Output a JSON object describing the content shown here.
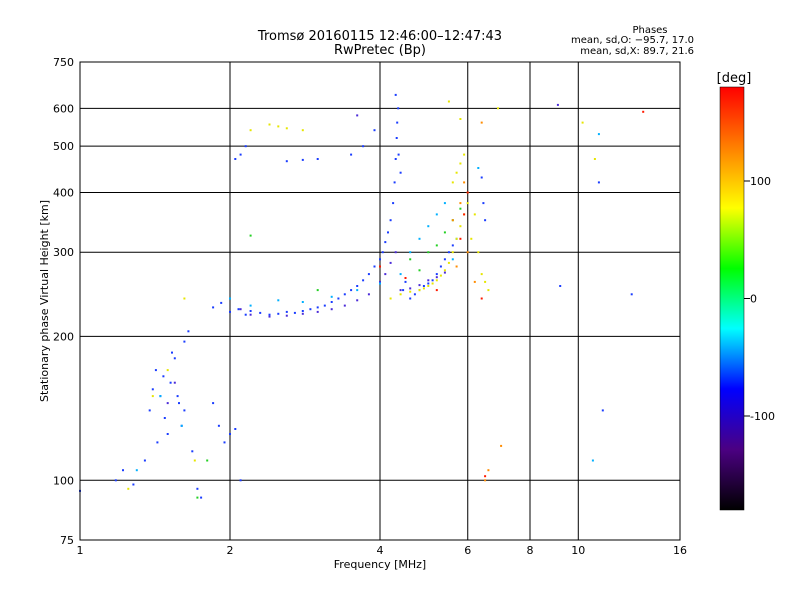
{
  "chart_data": {
    "type": "scatter",
    "title": "Tromsø 20160115 12:46:00–12:47:43",
    "subtitle": "RwPretec (Bp)",
    "xlabel": "Frequency [MHz]",
    "ylabel": "Stationary phase Virtual Height [km]",
    "x_scale": "log",
    "y_scale": "log",
    "xlim": [
      1,
      16
    ],
    "ylim": [
      75,
      750
    ],
    "x_ticks": [
      1,
      2,
      4,
      6,
      8,
      10,
      16
    ],
    "y_ticks": [
      75,
      100,
      200,
      300,
      400,
      500,
      600,
      750
    ],
    "grid": true,
    "stats": {
      "heading": "Phases",
      "o_line": "mean, sd,O: −95.7, 17.0",
      "x_line": "mean, sd,X: 89.7, 21.6"
    },
    "colorbar": {
      "label": "[deg]",
      "range": [
        -180,
        180
      ],
      "ticks": [
        100,
        0,
        -100
      ],
      "colors": [
        "#000000",
        "#4b0082",
        "#0000ff",
        "#00ffff",
        "#00ff00",
        "#ffff00",
        "#ff8000",
        "#ff0000"
      ]
    },
    "series": [
      {
        "phase": -100,
        "color": "#1a3cff",
        "x": [
          1.0,
          1.18,
          1.22,
          1.28,
          1.35,
          1.38,
          1.4,
          1.42,
          1.45,
          1.48,
          1.5,
          1.52,
          1.55,
          1.58,
          1.6,
          1.62,
          1.65,
          1.43,
          1.47,
          1.53,
          1.57,
          1.62,
          1.68,
          1.72,
          1.75,
          1.85,
          1.9,
          1.95,
          2.0,
          2.05,
          2.1,
          1.85,
          1.92,
          2.0,
          2.08,
          2.15,
          2.2,
          2.3,
          2.4,
          2.5,
          2.6,
          2.7,
          2.8,
          2.9,
          3.0,
          3.1,
          3.2,
          3.3,
          3.4,
          3.5,
          3.6,
          3.7,
          3.8,
          3.9,
          4.0,
          4.05,
          4.1,
          4.15,
          4.2,
          4.25,
          4.28,
          4.3,
          4.32,
          4.35,
          4.3,
          4.33,
          4.36,
          4.4,
          4.45,
          4.5,
          4.6,
          4.7,
          4.8,
          4.9,
          5.0,
          5.1,
          5.2,
          5.3,
          5.4,
          5.5,
          5.6,
          2.05,
          2.1,
          2.15,
          2.6,
          2.8,
          3.0,
          3.5,
          3.7,
          3.9,
          6.4,
          6.45,
          6.5,
          9.2,
          11.0,
          12.8,
          11.2
        ],
        "y": [
          95,
          100,
          105,
          98,
          110,
          140,
          155,
          170,
          150,
          135,
          125,
          160,
          180,
          145,
          130,
          195,
          205,
          120,
          165,
          185,
          150,
          140,
          115,
          96,
          92,
          145,
          130,
          120,
          125,
          128,
          100,
          230,
          235,
          225,
          228,
          222,
          226,
          224,
          222,
          223,
          225,
          224,
          226,
          228,
          230,
          232,
          236,
          240,
          245,
          250,
          255,
          262,
          270,
          280,
          290,
          300,
          315,
          330,
          350,
          380,
          420,
          470,
          520,
          600,
          640,
          560,
          480,
          440,
          250,
          260,
          240,
          245,
          250,
          255,
          258,
          262,
          270,
          280,
          290,
          300,
          310,
          470,
          480,
          500,
          465,
          468,
          470,
          480,
          500,
          540,
          430,
          380,
          350,
          255,
          420,
          245,
          140
        ],
        "px": [],
        "py": []
      },
      {
        "phase": -130,
        "color": "#4b2bd8",
        "x": [
          1.5,
          1.55,
          2.1,
          2.2,
          2.4,
          2.6,
          2.8,
          3.0,
          3.2,
          3.4,
          3.6,
          3.8,
          4.0,
          4.1,
          4.2,
          4.3,
          4.4,
          4.6,
          4.8,
          5.0,
          5.2,
          5.4,
          9.1,
          3.6
        ],
        "y": [
          145,
          160,
          228,
          222,
          220,
          221,
          223,
          225,
          228,
          232,
          238,
          245,
          260,
          270,
          285,
          300,
          250,
          252,
          256,
          262,
          266,
          272,
          610,
          580
        ],
        "px": [],
        "py": []
      },
      {
        "phase": -10,
        "color": "#00b0ff",
        "x": [
          1.3,
          1.45,
          1.6,
          2.0,
          2.2,
          2.5,
          2.8,
          3.2,
          3.6,
          4.0,
          4.4,
          4.6,
          4.8,
          5.0,
          5.2,
          5.4,
          5.6,
          5.7,
          6.3,
          11.0,
          10.7
        ],
        "y": [
          105,
          150,
          130,
          240,
          232,
          238,
          236,
          242,
          250,
          258,
          270,
          300,
          320,
          340,
          360,
          380,
          290,
          320,
          450,
          530,
          110
        ],
        "px": [],
        "py": []
      },
      {
        "phase": 20,
        "color": "#22d022",
        "x": [
          1.72,
          1.8,
          2.2,
          3.0,
          4.6,
          5.0,
          5.2,
          5.4,
          5.6,
          5.8,
          4.8
        ],
        "y": [
          92,
          110,
          325,
          250,
          290,
          300,
          310,
          330,
          350,
          370,
          275
        ],
        "px": [],
        "py": []
      },
      {
        "phase": 100,
        "color": "#e6e600",
        "x": [
          1.25,
          1.4,
          1.5,
          1.62,
          1.7,
          2.2,
          2.4,
          2.5,
          2.6,
          2.8,
          4.2,
          4.4,
          4.6,
          4.8,
          4.9,
          5.0,
          5.1,
          5.2,
          5.3,
          5.4,
          5.5,
          5.6,
          5.7,
          5.8,
          5.9,
          6.0,
          6.1,
          5.6,
          5.7,
          5.8,
          5.9,
          6.0,
          6.2,
          6.3,
          6.4,
          6.5,
          6.6,
          6.9,
          10.2,
          10.8,
          5.5,
          5.8
        ],
        "y": [
          96,
          150,
          170,
          240,
          110,
          540,
          555,
          550,
          545,
          540,
          240,
          245,
          248,
          250,
          252,
          255,
          258,
          262,
          268,
          275,
          285,
          300,
          320,
          340,
          360,
          380,
          320,
          420,
          440,
          460,
          480,
          400,
          360,
          300,
          270,
          260,
          250,
          600,
          560,
          470,
          620,
          570
        ],
        "px": [],
        "py": []
      },
      {
        "phase": 150,
        "color": "#ff8c00",
        "x": [
          5.6,
          5.8,
          5.9,
          6.0,
          5.7,
          6.4,
          6.5,
          6.6,
          7.0,
          6.2
        ],
        "y": [
          350,
          380,
          420,
          300,
          280,
          560,
          100,
          105,
          118,
          260
        ],
        "px": [],
        "py": []
      },
      {
        "phase": 175,
        "color": "#ff1a00",
        "x": [
          4.0,
          5.8,
          5.9,
          6.0,
          6.4,
          6.5,
          13.5,
          4.5,
          5.2
        ],
        "y": [
          280,
          320,
          360,
          400,
          240,
          102,
          590,
          265,
          250
        ],
        "px": [],
        "py": []
      }
    ]
  }
}
